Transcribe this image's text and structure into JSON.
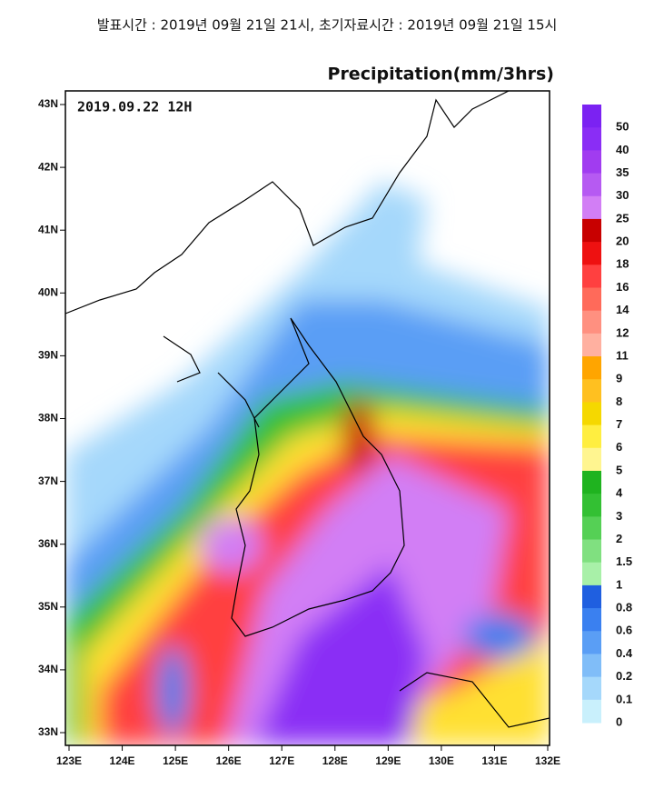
{
  "header": {
    "issue_line": "발표시간 : 2019년 09월 21일 21시, 초기자료시간 : 2019년 09월 21일 15시"
  },
  "map": {
    "title": "Precipitation(mm/3hrs)",
    "timestamp": "2019.09.22 12H",
    "lat_labels": [
      "43N",
      "42N",
      "41N",
      "40N",
      "39N",
      "38N",
      "37N",
      "36N",
      "35N",
      "34N",
      "33N"
    ],
    "lon_labels": [
      "123E",
      "124E",
      "125E",
      "126E",
      "127E",
      "128E",
      "129E",
      "130E",
      "131E",
      "132E"
    ]
  },
  "colorbar": {
    "labels": [
      "50",
      "40",
      "35",
      "30",
      "25",
      "20",
      "18",
      "16",
      "14",
      "12",
      "11",
      "9",
      "8",
      "7",
      "6",
      "5",
      "4",
      "3",
      "2",
      "1.5",
      "1",
      "0.8",
      "0.6",
      "0.4",
      "0.2",
      "0.1",
      "0"
    ]
  }
}
